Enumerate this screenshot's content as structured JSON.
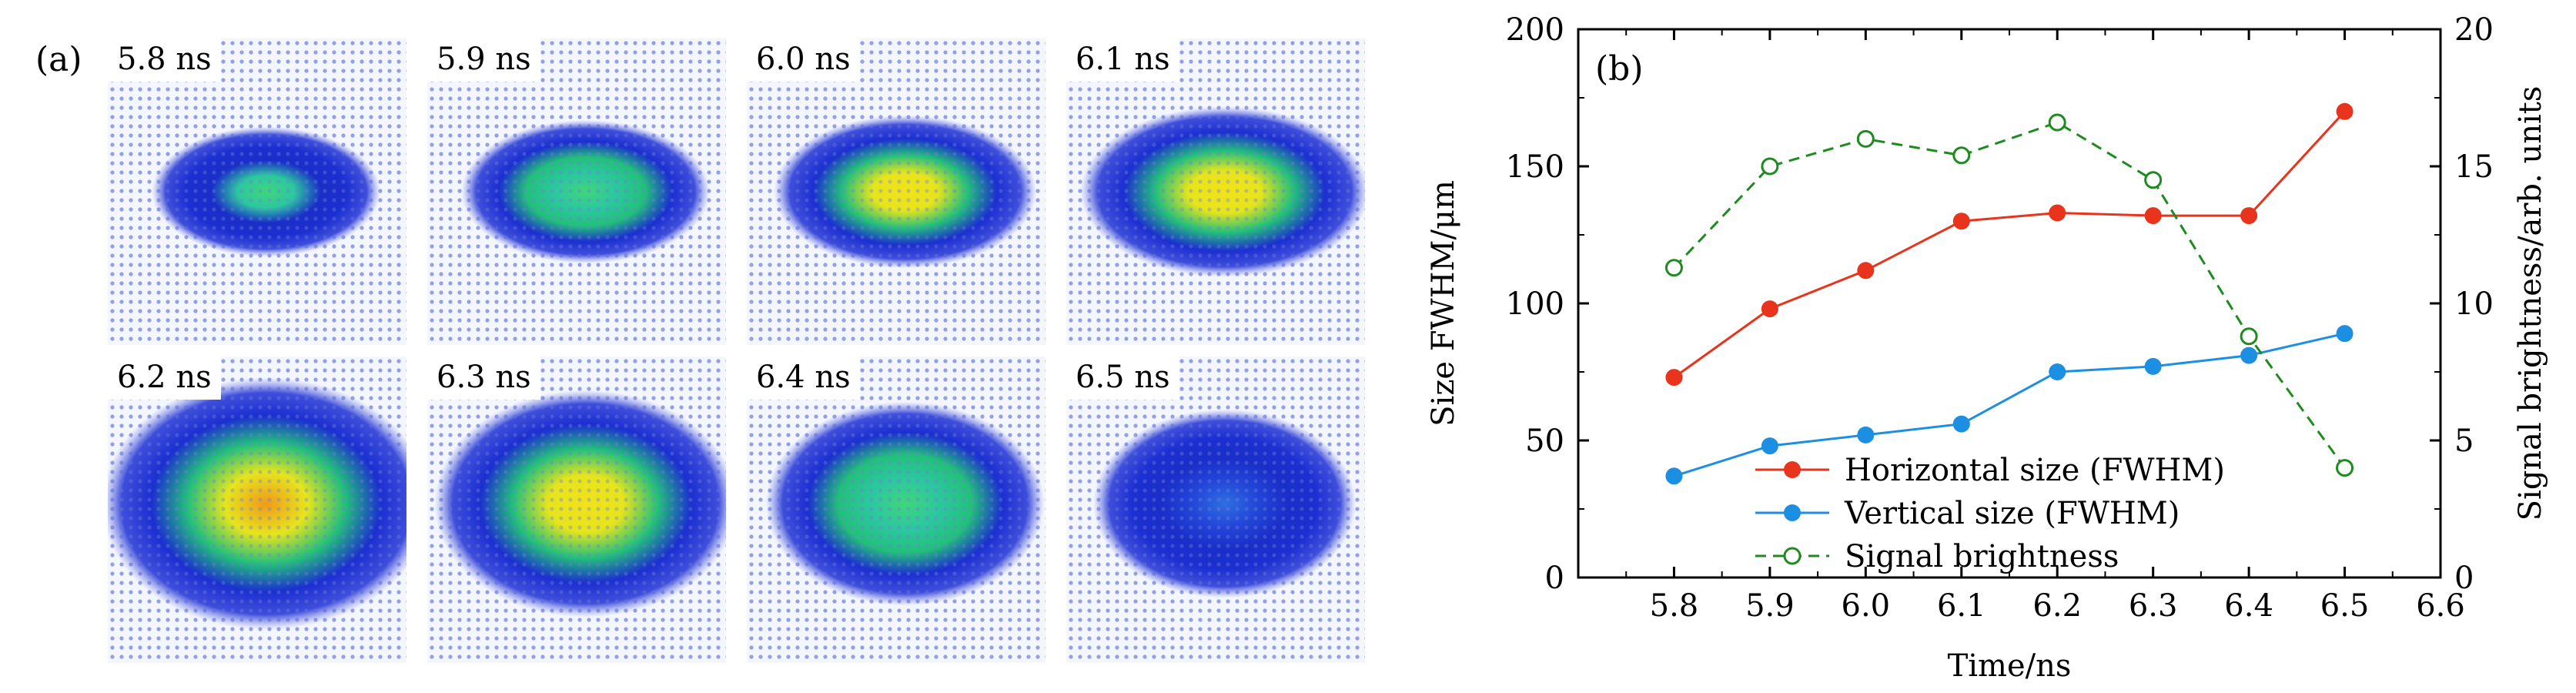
{
  "panel_a": {
    "label": "(a)",
    "frames": [
      {
        "time_label": "5.8 ns",
        "intensity": 0.35,
        "spread": 0.45
      },
      {
        "time_label": "5.9 ns",
        "intensity": 0.55,
        "spread": 0.55
      },
      {
        "time_label": "6.0 ns",
        "intensity": 0.75,
        "spread": 0.62
      },
      {
        "time_label": "6.1 ns",
        "intensity": 0.85,
        "spread": 0.75
      },
      {
        "time_label": "6.2 ns",
        "intensity": 0.95,
        "spread": 0.95
      },
      {
        "time_label": "6.3 ns",
        "intensity": 0.75,
        "spread": 0.82
      },
      {
        "time_label": "6.4 ns",
        "intensity": 0.45,
        "spread": 0.7
      },
      {
        "time_label": "6.5 ns",
        "intensity": 0.2,
        "spread": 0.62
      }
    ]
  },
  "chart_data": {
    "type": "line",
    "panel_label": "(b)",
    "xlabel": "Time/ns",
    "ylabel": "Size FWHM/μm",
    "y2label": "Signal  brightness/arb. units",
    "xlim": [
      5.7,
      6.6
    ],
    "ylim": [
      0,
      200
    ],
    "y2lim": [
      0,
      20
    ],
    "x_ticks": [
      "5.8",
      "5.9",
      "6.0",
      "6.1",
      "6.2",
      "6.3",
      "6.4",
      "6.5",
      "6.6"
    ],
    "y_ticks": [
      "0",
      "50",
      "100",
      "150",
      "200"
    ],
    "y2_ticks": [
      "0",
      "5",
      "10",
      "15",
      "20"
    ],
    "legend_position": "bottom-center",
    "series": [
      {
        "name": "Horizontal size (FWHM)",
        "axis": "left",
        "color": "#e8341c",
        "style": "solid",
        "marker": "filled-circle",
        "x": [
          5.8,
          5.9,
          6.0,
          6.1,
          6.2,
          6.3,
          6.4,
          6.5
        ],
        "values": [
          73,
          98,
          112,
          130,
          133,
          132,
          132,
          170
        ]
      },
      {
        "name": "Vertical size (FWHM)",
        "axis": "left",
        "color": "#1d8fe3",
        "style": "solid",
        "marker": "filled-circle",
        "x": [
          5.8,
          5.9,
          6.0,
          6.1,
          6.2,
          6.3,
          6.4,
          6.5
        ],
        "values": [
          37,
          48,
          52,
          56,
          75,
          77,
          81,
          89
        ]
      },
      {
        "name": "Signal brightness",
        "axis": "right",
        "color": "#1f8a1f",
        "style": "dashed",
        "marker": "open-circle",
        "x": [
          5.8,
          5.9,
          6.0,
          6.1,
          6.2,
          6.3,
          6.4,
          6.5
        ],
        "values": [
          11.3,
          15.0,
          16.0,
          15.4,
          16.6,
          14.5,
          8.8,
          4.0
        ]
      }
    ]
  }
}
